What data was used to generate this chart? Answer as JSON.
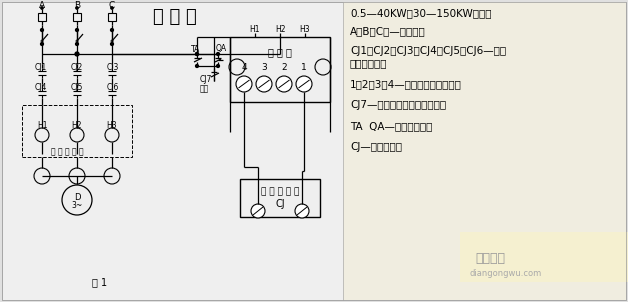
{
  "bg_color": "#e8e8e8",
  "title": "接 线 图",
  "right_texts": [
    "0.5—40KW、30—150KW接线图",
    "A、B、C、—三相电源",
    "CJ1、CJ2、CJ3、CJ4、CJ5、CJ6—交流",
    "接触器主触头",
    "1、2、3、4—保护器接线端子号码",
    "CJ7—交流接触器辅助常开触头",
    "TA  QA—停止起动按鈕",
    "CJ—接触器线圈"
  ],
  "watermark1": "电工之屋",
  "watermark2": "diangongwu.com",
  "fig1": "图 1",
  "title_cn": "接 线 图",
  "prot_label": "保 护 器",
  "coil_label1": "接 触 器 线 圈",
  "coil_label2": "CJ",
  "wire_hole": "穿 过 导 线 孔",
  "cj7_label": "CJ7",
  "zisuo_label": "自锁"
}
